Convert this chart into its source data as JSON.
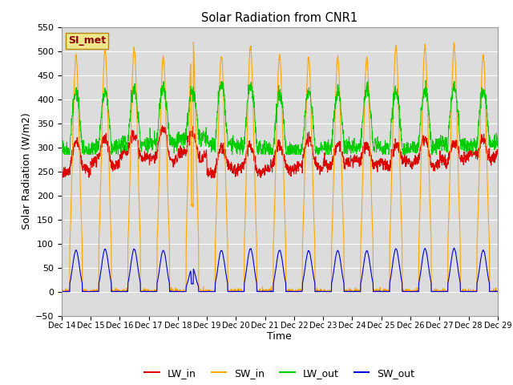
{
  "title": "Solar Radiation from CNR1",
  "xlabel": "Time",
  "ylabel": "Solar Radiation (W/m2)",
  "ylim": [
    -50,
    550
  ],
  "yticks": [
    -50,
    0,
    50,
    100,
    150,
    200,
    250,
    300,
    350,
    400,
    450,
    500,
    550
  ],
  "bg_color": "#dcdcdc",
  "fig_color": "#ffffff",
  "colors": {
    "LW_in": "#dd0000",
    "SW_in": "#ffa500",
    "LW_out": "#00cc00",
    "SW_out": "#0000dd"
  },
  "annotation": "SI_met",
  "annotation_color": "#8b0000",
  "annotation_bg": "#f0e68c",
  "n_days": 15,
  "start_day": 14
}
